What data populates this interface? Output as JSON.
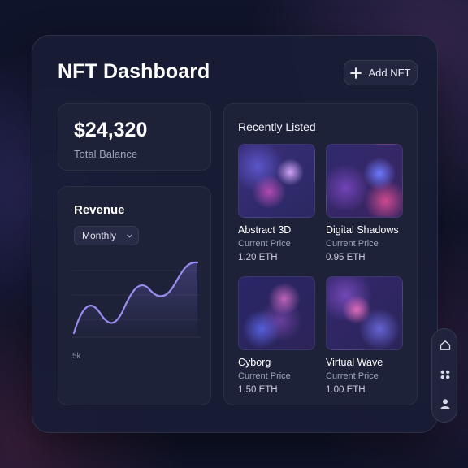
{
  "header": {
    "title": "NFT Dashboard",
    "add_button_label": "Add NFT"
  },
  "balance": {
    "amount": "$24,320",
    "label": "Total Balance"
  },
  "revenue": {
    "title": "Revenue",
    "period_selected": "Monthly",
    "axis_label": "5k"
  },
  "recently_listed": {
    "title": "Recently Listed",
    "items": [
      {
        "name": "Abstract 3D",
        "price_label": "Current Price",
        "price": "1.20 ETH"
      },
      {
        "name": "Digital Shadows",
        "price_label": "Current Price",
        "price": "0.95 ETH"
      },
      {
        "name": "Cyborg",
        "price_label": "Current Price",
        "price": "1.50 ETH"
      },
      {
        "name": "Virtual Wave",
        "price_label": "Current Price",
        "price": "1.00 ETH"
      }
    ]
  },
  "side_nav": {
    "icons": [
      "home-icon",
      "grid-icon",
      "user-icon"
    ]
  },
  "colors": {
    "background": "#10142a",
    "card": "#1e2239",
    "line": "#9b8cf0"
  }
}
